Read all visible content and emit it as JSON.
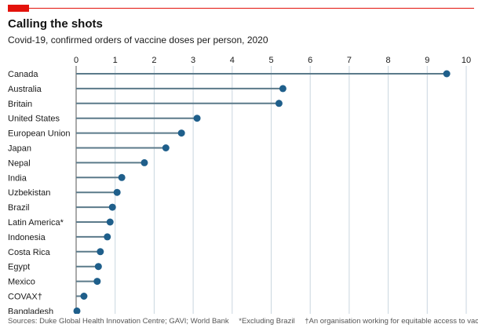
{
  "header": {
    "title": "Calling the shots",
    "subtitle": "Covid-19, confirmed orders of vaccine doses per person, 2020"
  },
  "footer": {
    "sources": "Sources: Duke Global Health Innovation Centre; GAVI; World Bank",
    "note_latin": "*Excluding Brazil",
    "note_covax": "†An organisation working for equitable access to vaccines"
  },
  "colors": {
    "accent": "#e3120b",
    "dot": "#1f5f8b",
    "stem": "#5b7a8a",
    "grid": "#c9d6df"
  },
  "chart_data": {
    "type": "lollipop",
    "title": "Calling the shots",
    "subtitle": "Covid-19, confirmed orders of vaccine doses per person, 2020",
    "xlabel": "",
    "ylabel": "",
    "xlim": [
      0,
      10
    ],
    "xticks": [
      0,
      1,
      2,
      3,
      4,
      5,
      6,
      7,
      8,
      9,
      10
    ],
    "grid": true,
    "categories": [
      "Canada",
      "Australia",
      "Britain",
      "United States",
      "European Union",
      "Japan",
      "Nepal",
      "India",
      "Uzbekistan",
      "Brazil",
      "Latin America*",
      "Indonesia",
      "Costa Rica",
      "Egypt",
      "Mexico",
      "COVAX†",
      "Bangladesh"
    ],
    "values": [
      9.5,
      5.3,
      5.2,
      3.1,
      2.7,
      2.3,
      1.75,
      1.17,
      1.05,
      0.93,
      0.87,
      0.8,
      0.62,
      0.57,
      0.54,
      0.2,
      0.02
    ]
  }
}
